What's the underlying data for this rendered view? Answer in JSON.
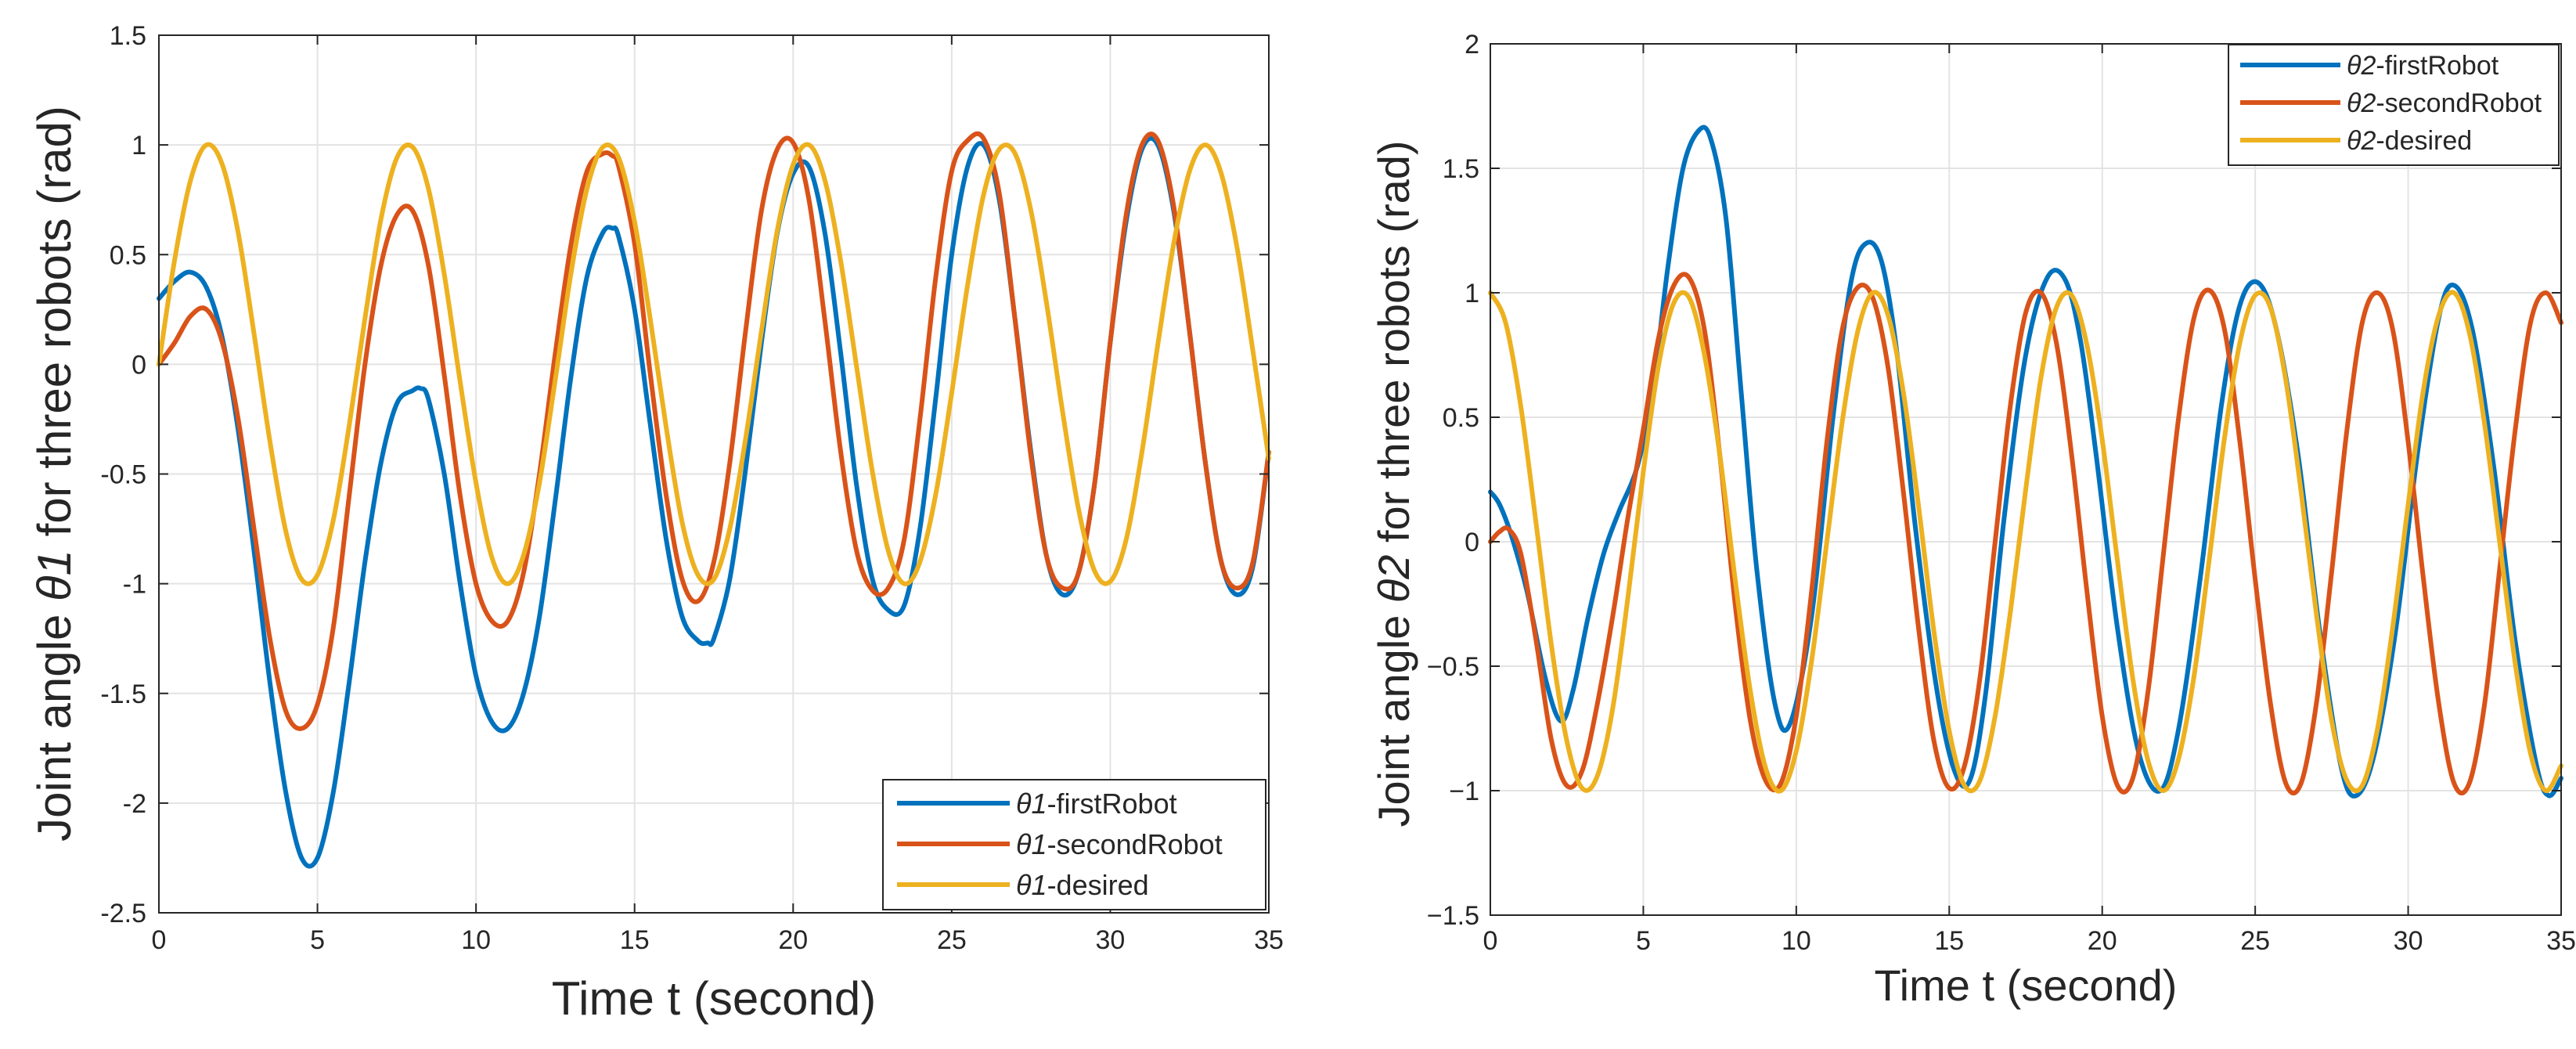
{
  "chart_data": [
    {
      "type": "line",
      "title": "",
      "xlabel": "Time t (second)",
      "ylabel_prefix": "Joint angle ",
      "ylabel_symbol": "θ1",
      "ylabel_suffix": " for three robots (rad)",
      "xlim": [
        0,
        35
      ],
      "ylim": [
        -2.5,
        1.5
      ],
      "xticks": [
        0,
        5,
        10,
        15,
        20,
        25,
        30,
        35
      ],
      "xtick_labels": [
        "0",
        "5",
        "10",
        "15",
        "20",
        "25",
        "30",
        "35"
      ],
      "yticks": [
        -2.5,
        -2,
        -1.5,
        -1,
        -0.5,
        0,
        0.5,
        1,
        1.5
      ],
      "ytick_labels": [
        "-2.5",
        "-2",
        "-1.5",
        "-1",
        "-0.5",
        "0",
        "0.5",
        "1",
        "1.5"
      ],
      "grid": true,
      "legend_position": "bottom-right",
      "series": [
        {
          "name": "firstRobot",
          "symbol": "θ1",
          "label_suffix": "-firstRobot",
          "color": "#0072BD",
          "x": [
            0,
            0.5,
            1,
            1.5,
            2,
            2.5,
            3,
            3.5,
            4,
            4.5,
            5,
            5.5,
            6,
            6.5,
            7,
            7.5,
            8,
            8.25,
            8.5,
            9,
            9.5,
            10,
            10.5,
            11,
            11.5,
            12,
            12.5,
            13,
            13.5,
            14,
            14.3,
            14.5,
            15,
            15.5,
            16,
            16.5,
            17,
            17.3,
            17.5,
            18,
            18.5,
            19,
            19.5,
            20,
            20.5,
            21,
            21.5,
            22,
            22.5,
            23,
            23.5,
            24,
            24.5,
            25,
            25.5,
            26,
            26.5,
            27,
            27.5,
            28,
            28.5,
            29,
            29.5,
            30,
            30.5,
            31,
            31.5,
            32,
            32.5,
            33,
            33.5,
            34,
            34.5,
            35
          ],
          "y": [
            0.3,
            0.38,
            0.42,
            0.35,
            0.12,
            -0.3,
            -0.85,
            -1.45,
            -1.95,
            -2.25,
            -2.25,
            -1.95,
            -1.45,
            -0.9,
            -0.45,
            -0.18,
            -0.12,
            -0.11,
            -0.16,
            -0.5,
            -1.0,
            -1.42,
            -1.63,
            -1.66,
            -1.5,
            -1.15,
            -0.62,
            -0.05,
            0.4,
            0.6,
            0.62,
            0.58,
            0.25,
            -0.28,
            -0.8,
            -1.15,
            -1.26,
            -1.27,
            -1.25,
            -0.98,
            -0.48,
            0.1,
            0.6,
            0.87,
            0.9,
            0.6,
            0.05,
            -0.55,
            -0.98,
            -1.12,
            -1.1,
            -0.75,
            -0.15,
            0.5,
            0.9,
            1.0,
            0.75,
            0.2,
            -0.4,
            -0.88,
            -1.05,
            -0.95,
            -0.55,
            0.1,
            0.65,
            0.98,
            1.0,
            0.7,
            0.15,
            -0.45,
            -0.9,
            -1.05,
            -0.92,
            -0.4
          ]
        },
        {
          "name": "secondRobot",
          "symbol": "θ1",
          "label_suffix": "-secondRobot",
          "color": "#D95319",
          "x": [
            0,
            0.5,
            1,
            1.5,
            2,
            2.5,
            3,
            3.5,
            4,
            4.5,
            5,
            5.5,
            6,
            6.5,
            7,
            7.5,
            8,
            8.5,
            9,
            9.5,
            10,
            10.5,
            11,
            11.5,
            12,
            12.5,
            13,
            13.5,
            14,
            14.3,
            14.5,
            15,
            15.5,
            16,
            16.5,
            17,
            17.5,
            18,
            18.5,
            19,
            19.5,
            20,
            20.5,
            21,
            21.5,
            22,
            22.5,
            23,
            23.5,
            24,
            24.5,
            25,
            25.5,
            26,
            26.5,
            27,
            27.5,
            28,
            28.5,
            29,
            29.5,
            30,
            30.5,
            31,
            31.5,
            32,
            32.5,
            33,
            33.5,
            34,
            34.5,
            35
          ],
          "y": [
            0.0,
            0.1,
            0.22,
            0.25,
            0.1,
            -0.25,
            -0.75,
            -1.25,
            -1.58,
            -1.66,
            -1.55,
            -1.2,
            -0.6,
            0.0,
            0.45,
            0.68,
            0.7,
            0.45,
            -0.05,
            -0.6,
            -1.0,
            -1.17,
            -1.17,
            -0.95,
            -0.5,
            0.05,
            0.55,
            0.88,
            0.96,
            0.95,
            0.9,
            0.55,
            -0.05,
            -0.6,
            -0.98,
            -1.08,
            -0.9,
            -0.45,
            0.15,
            0.7,
            0.98,
            1.01,
            0.75,
            0.2,
            -0.4,
            -0.85,
            -1.03,
            -1.02,
            -0.8,
            -0.25,
            0.4,
            0.88,
            1.02,
            1.03,
            0.78,
            0.2,
            -0.42,
            -0.88,
            -1.02,
            -0.95,
            -0.55,
            0.1,
            0.68,
            1.0,
            1.02,
            0.72,
            0.15,
            -0.45,
            -0.9,
            -1.02,
            -0.9,
            -0.4
          ]
        },
        {
          "name": "desired",
          "symbol": "θ1",
          "label_suffix": "-desired",
          "color": "#EDB120",
          "x": [
            0,
            0.5,
            1,
            1.5,
            2,
            2.5,
            3,
            3.5,
            4,
            4.5,
            5,
            5.5,
            6,
            6.5,
            7,
            7.5,
            8,
            8.5,
            9,
            9.5,
            10,
            10.5,
            11,
            11.5,
            12,
            12.5,
            13,
            13.5,
            14,
            14.5,
            15,
            15.5,
            16,
            16.5,
            17,
            17.5,
            18,
            18.5,
            19,
            19.5,
            20,
            20.5,
            21,
            21.5,
            22,
            22.5,
            23,
            23.5,
            24,
            24.5,
            25,
            25.5,
            26,
            26.5,
            27,
            27.5,
            28,
            28.5,
            29,
            29.5,
            30,
            30.5,
            31,
            31.5,
            32,
            32.5,
            33,
            33.5,
            34,
            34.5,
            35
          ],
          "y": [
            0.0,
            0.48,
            0.84,
            1.0,
            0.91,
            0.6,
            0.14,
            -0.35,
            -0.76,
            -0.98,
            -0.96,
            -0.71,
            -0.28,
            0.21,
            0.66,
            0.94,
            0.99,
            0.8,
            0.41,
            -0.08,
            -0.54,
            -0.88,
            -1.0,
            -0.87,
            -0.54,
            -0.07,
            0.42,
            0.8,
            0.99,
            0.94,
            0.65,
            0.2,
            -0.29,
            -0.72,
            -0.96,
            -0.98,
            -0.75,
            -0.34,
            0.15,
            0.61,
            0.91,
            1.0,
            0.84,
            0.47,
            -0.01,
            -0.49,
            -0.85,
            -1.0,
            -0.9,
            -0.59,
            -0.13,
            0.36,
            0.77,
            0.98,
            0.96,
            0.7,
            0.27,
            -0.22,
            -0.66,
            -0.94,
            -0.99,
            -0.8,
            -0.4,
            0.09,
            0.55,
            0.88,
            1.0,
            0.87,
            0.53,
            0.06,
            -0.43
          ]
        }
      ]
    },
    {
      "type": "line",
      "title": "",
      "xlabel": "Time t (second)",
      "ylabel_prefix": "Joint angle ",
      "ylabel_symbol": "θ2",
      "ylabel_suffix": " for three robots (rad)",
      "xlim": [
        0,
        35
      ],
      "ylim": [
        -1.5,
        2
      ],
      "xticks": [
        0,
        5,
        10,
        15,
        20,
        25,
        30,
        35
      ],
      "xtick_labels": [
        "0",
        "5",
        "10",
        "15",
        "20",
        "25",
        "30",
        "35"
      ],
      "yticks": [
        -1.5,
        -1,
        -0.5,
        0,
        0.5,
        1,
        1.5,
        2
      ],
      "ytick_labels": [
        "−1.5",
        "−1",
        "−0.5",
        "0",
        "0.5",
        "1",
        "1.5",
        "2"
      ],
      "grid": true,
      "legend_position": "top-right",
      "series": [
        {
          "name": "firstRobot",
          "symbol": "θ2",
          "label_suffix": "-firstRobot",
          "color": "#0072BD",
          "x": [
            0,
            0.3,
            0.7,
            1.2,
            1.8,
            2.3,
            2.7,
            3.2,
            3.7,
            4.2,
            4.8,
            5.3,
            5.8,
            6.3,
            6.8,
            7.2,
            7.7,
            8.2,
            8.7,
            9.3,
            9.8,
            10.5,
            11.2,
            11.8,
            12.3,
            12.8,
            13.3,
            13.9,
            14.6,
            15.2,
            15.7,
            16.2,
            16.8,
            17.5,
            18.2,
            18.8,
            19.3,
            19.8,
            20.5,
            21.2,
            21.9,
            22.5,
            23.2,
            23.9,
            24.5,
            25.1,
            25.7,
            26.4,
            27.1,
            27.8,
            28.3,
            28.9,
            29.6,
            30.3,
            31.0,
            31.5,
            32.1,
            32.8,
            33.5,
            34.2,
            34.6,
            35
          ],
          "y": [
            0.2,
            0.15,
            0.02,
            -0.2,
            -0.55,
            -0.72,
            -0.6,
            -0.3,
            -0.05,
            0.12,
            0.3,
            0.6,
            1.1,
            1.5,
            1.65,
            1.62,
            1.3,
            0.6,
            -0.1,
            -0.65,
            -0.73,
            -0.3,
            0.5,
            1.05,
            1.2,
            1.12,
            0.75,
            0.05,
            -0.6,
            -0.93,
            -0.95,
            -0.6,
            0.1,
            0.75,
            1.06,
            1.05,
            0.8,
            0.35,
            -0.35,
            -0.85,
            -1.0,
            -0.75,
            -0.15,
            0.55,
            0.95,
            1.04,
            0.85,
            0.35,
            -0.35,
            -0.9,
            -1.02,
            -0.85,
            -0.35,
            0.35,
            0.9,
            1.03,
            0.85,
            0.3,
            -0.4,
            -0.9,
            -1.02,
            -0.95
          ]
        },
        {
          "name": "secondRobot",
          "symbol": "θ2",
          "label_suffix": "-secondRobot",
          "color": "#D95319",
          "x": [
            0,
            0.3,
            0.6,
            1.0,
            1.5,
            2.0,
            2.5,
            3.0,
            3.5,
            4.0,
            4.5,
            5.0,
            5.5,
            6.0,
            6.5,
            7.0,
            7.5,
            8.0,
            8.5,
            9.0,
            9.5,
            10.0,
            10.5,
            11.0,
            11.5,
            12.0,
            12.5,
            13.0,
            13.5,
            14.0,
            14.5,
            15.0,
            15.5,
            16.0,
            16.5,
            17.0,
            17.5,
            18.0,
            18.5,
            19.0,
            19.5,
            20.0,
            20.5,
            21.0,
            21.5,
            22.0,
            22.5,
            23.0,
            23.5,
            24.0,
            24.5,
            25.0,
            25.5,
            26.0,
            26.5,
            27.0,
            27.5,
            28.0,
            28.5,
            29.0,
            29.5,
            30.0,
            30.5,
            31.0,
            31.5,
            32.0,
            32.5,
            33.0,
            33.5,
            34.0,
            34.5,
            35.0
          ],
          "y": [
            0.0,
            0.04,
            0.05,
            -0.05,
            -0.4,
            -0.8,
            -0.98,
            -0.92,
            -0.65,
            -0.3,
            0.1,
            0.45,
            0.82,
            1.03,
            1.06,
            0.85,
            0.35,
            -0.25,
            -0.72,
            -0.96,
            -0.97,
            -0.7,
            -0.2,
            0.4,
            0.85,
            1.02,
            0.98,
            0.7,
            0.2,
            -0.35,
            -0.8,
            -0.99,
            -0.9,
            -0.55,
            0.0,
            0.55,
            0.92,
            1.0,
            0.8,
            0.35,
            -0.2,
            -0.7,
            -0.98,
            -0.95,
            -0.6,
            -0.05,
            0.5,
            0.9,
            1.01,
            0.85,
            0.4,
            -0.15,
            -0.65,
            -0.97,
            -0.97,
            -0.65,
            -0.12,
            0.45,
            0.88,
            1.0,
            0.85,
            0.4,
            -0.15,
            -0.65,
            -0.97,
            -0.97,
            -0.65,
            -0.1,
            0.45,
            0.88,
            1.0,
            0.88
          ]
        },
        {
          "name": "desired",
          "symbol": "θ2",
          "label_suffix": "-desired",
          "color": "#EDB120",
          "x": [
            0,
            0.5,
            1.0,
            1.5,
            2.0,
            2.5,
            3.0,
            3.5,
            4.0,
            4.5,
            5.0,
            5.5,
            6.0,
            6.5,
            7.0,
            7.5,
            8.0,
            8.5,
            9.0,
            9.5,
            10.0,
            10.5,
            11.0,
            11.5,
            12.0,
            12.5,
            13.0,
            13.5,
            14.0,
            14.5,
            15.0,
            15.5,
            16.0,
            16.5,
            17.0,
            17.5,
            18.0,
            18.5,
            19.0,
            19.5,
            20.0,
            20.5,
            21.0,
            21.5,
            22.0,
            22.5,
            23.0,
            23.5,
            24.0,
            24.5,
            25.0,
            25.5,
            26.0,
            26.5,
            27.0,
            27.5,
            28.0,
            28.5,
            29.0,
            29.5,
            30.0,
            30.5,
            31.0,
            31.5,
            32.0,
            32.5,
            33.0,
            33.5,
            34.0,
            34.5,
            35.0
          ],
          "y": [
            1.0,
            0.88,
            0.54,
            0.07,
            -0.42,
            -0.8,
            -0.99,
            -0.94,
            -0.67,
            -0.22,
            0.28,
            0.71,
            0.96,
            0.98,
            0.75,
            0.35,
            -0.15,
            -0.6,
            -0.91,
            -1.0,
            -0.84,
            -0.48,
            0.0,
            0.48,
            0.84,
            1.0,
            0.91,
            0.6,
            0.14,
            -0.36,
            -0.76,
            -0.98,
            -0.96,
            -0.7,
            -0.28,
            0.21,
            0.66,
            0.94,
            0.99,
            0.79,
            0.41,
            -0.08,
            -0.55,
            -0.88,
            -1.0,
            -0.87,
            -0.54,
            -0.07,
            0.42,
            0.8,
            0.99,
            0.94,
            0.65,
            0.2,
            -0.29,
            -0.72,
            -0.96,
            -0.98,
            -0.75,
            -0.34,
            0.15,
            0.61,
            0.91,
            1.0,
            0.84,
            0.47,
            -0.01,
            -0.49,
            -0.85,
            -1.0,
            -0.9
          ]
        }
      ]
    }
  ]
}
